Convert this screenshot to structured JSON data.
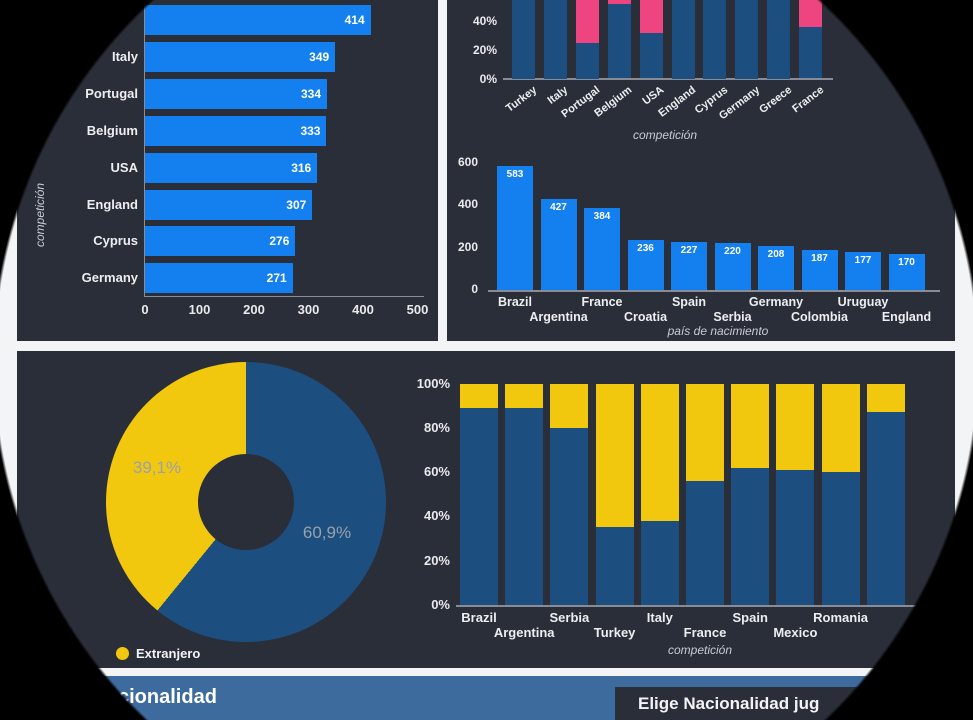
{
  "colors": {
    "tile": "#2a2e38",
    "page_background": "#f3f4f6",
    "mask_outside": "#000000",
    "bright_blue": "#1480f0",
    "navy": "#1c4e80",
    "yellow": "#f2c80f",
    "pink": "#ee4480",
    "header_blue": "#3e6b9e",
    "donut_label_gray": "#99a1ac"
  },
  "header_bar": {
    "title_visible": "cionalidad",
    "slicer_button_visible": "Elige Nacionalidad jug"
  },
  "donut_legend": {
    "label": "Extranjero",
    "dot_color": "#f2c80f"
  },
  "chart_data": [
    {
      "id": "players_by_competition",
      "type": "bar",
      "orientation": "horizontal",
      "categories": [
        "",
        "Italy",
        "Portugal",
        "Belgium",
        "USA",
        "England",
        "Cyprus",
        "Germany"
      ],
      "values": [
        414,
        349,
        334,
        333,
        316,
        307,
        276,
        271
      ],
      "x_ticks": [
        "0",
        "100",
        "200",
        "300",
        "400",
        "500"
      ],
      "xlim": [
        0,
        500
      ],
      "ylabel": "competición",
      "bar_color": "#1480f0"
    },
    {
      "id": "pct_stacked_by_competition",
      "type": "stacked-bar-100",
      "categories": [
        "Turkey",
        "Italy",
        "Portugal",
        "Belgium",
        "USA",
        "England",
        "Cyprus",
        "Germany",
        "Greece",
        "France"
      ],
      "series": [
        {
          "name": "navy-bottom",
          "color": "#1c4e80",
          "values": [
            60,
            60,
            25,
            52,
            32,
            60,
            60,
            60,
            60,
            36
          ]
        },
        {
          "name": "pink-top",
          "color": "#ee4480",
          "values": [
            40,
            40,
            75,
            48,
            68,
            40,
            40,
            40,
            40,
            64
          ]
        }
      ],
      "y_ticks": [
        "0%",
        "20%",
        "40%"
      ],
      "xlabel": "competición",
      "note": "chart vertically cropped by screenshot top edge near 50%"
    },
    {
      "id": "players_by_birth_country",
      "type": "bar",
      "orientation": "vertical",
      "categories": [
        "Brazil",
        "Argentina",
        "France",
        "Croatia",
        "Spain",
        "Serbia",
        "Germany",
        "Colombia",
        "Uruguay",
        "England"
      ],
      "values": [
        583,
        427,
        384,
        236,
        227,
        220,
        208,
        187,
        177,
        170
      ],
      "y_ticks": [
        "0",
        "200",
        "400",
        "600"
      ],
      "ylim": [
        0,
        600
      ],
      "xlabel": "país de nacimiento",
      "bar_color": "#1480f0"
    },
    {
      "id": "foreign_share_donut",
      "type": "pie",
      "slices": [
        {
          "label": "60,9%",
          "value": 60.9,
          "color": "#1c4e80"
        },
        {
          "label": "39,1%",
          "value": 39.1,
          "color": "#f2c80f"
        }
      ],
      "legend": [
        {
          "label": "Extranjero",
          "color": "#f2c80f"
        }
      ]
    },
    {
      "id": "pct100_by_competition",
      "type": "stacked-bar-100",
      "categories": [
        "Brazil",
        "Argentina",
        "Serbia",
        "Turkey",
        "Italy",
        "France",
        "Spain",
        "Mexico",
        "Romania",
        ""
      ],
      "series": [
        {
          "name": "navy-bottom",
          "color": "#1c4e80",
          "values": [
            89,
            89,
            80,
            35,
            38,
            56,
            62,
            61,
            60,
            87
          ]
        },
        {
          "name": "yellow-top",
          "color": "#f2c80f",
          "values": [
            11,
            11,
            20,
            65,
            62,
            44,
            38,
            39,
            40,
            13
          ]
        }
      ],
      "y_ticks": [
        "0%",
        "20%",
        "40%",
        "60%",
        "80%",
        "100%"
      ],
      "xlabel": "competición"
    }
  ]
}
